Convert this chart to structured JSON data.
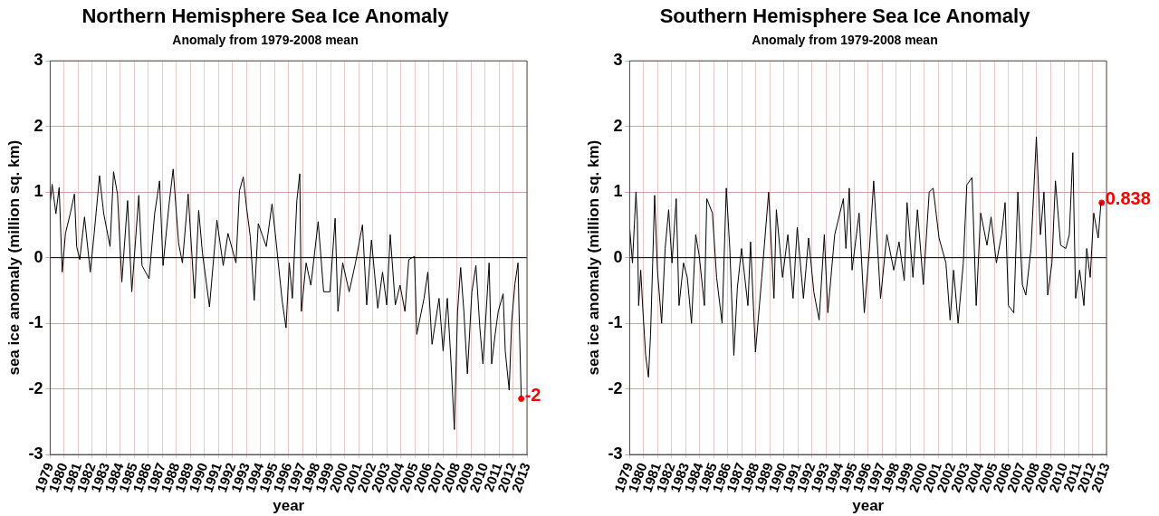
{
  "chart_data": [
    {
      "type": "line",
      "title": "Northern Hemisphere Sea Ice Anomaly",
      "subtitle": "Anomaly from 1979-2008 mean",
      "xlabel": "year",
      "ylabel": "sea ice anomaly (million sq. km)",
      "xlim": [
        1979,
        2013
      ],
      "xticks": [
        1979,
        1980,
        1981,
        1982,
        1983,
        1984,
        1985,
        1986,
        1987,
        1988,
        1989,
        1990,
        1991,
        1992,
        1993,
        1994,
        1995,
        1996,
        1997,
        1998,
        1999,
        2000,
        2001,
        2002,
        2003,
        2004,
        2005,
        2006,
        2007,
        2008,
        2009,
        2010,
        2011,
        2012,
        2013
      ],
      "ylim": [
        -3,
        3
      ],
      "yticks": [
        -3,
        -2,
        -1,
        0,
        1,
        2,
        3
      ],
      "grid": true,
      "ref_lines": [
        {
          "axis": "y",
          "value": 0,
          "color": "#000000"
        }
      ],
      "x": [
        1979.0,
        1979.14,
        1979.41,
        1979.64,
        1979.86,
        1980.09,
        1980.43,
        1980.73,
        1980.89,
        1981.11,
        1981.45,
        1981.86,
        1982.14,
        1982.52,
        1982.82,
        1983.27,
        1983.52,
        1983.8,
        1984.11,
        1984.52,
        1984.82,
        1985.32,
        1985.55,
        1986.05,
        1986.45,
        1986.8,
        1987.05,
        1987.48,
        1987.77,
        1988.16,
        1988.43,
        1988.84,
        1989.3,
        1989.59,
        1989.86,
        1990.36,
        1990.89,
        1991.34,
        1991.68,
        1992.25,
        1992.5,
        1992.77,
        1993.0,
        1993.27,
        1993.55,
        1993.84,
        1994.41,
        1994.82,
        1995.05,
        1995.55,
        1995.82,
        1996.05,
        1996.27,
        1996.59,
        1996.8,
        1996.91,
        1997.25,
        1997.59,
        1998.11,
        1998.5,
        1998.95,
        1999.32,
        1999.52,
        1999.86,
        2000.32,
        2000.77,
        2001.27,
        2001.57,
        2001.91,
        2002.36,
        2002.7,
        2003.0,
        2003.25,
        2003.61,
        2003.95,
        2004.3,
        2004.57,
        2004.98,
        2005.14,
        2005.66,
        2005.93,
        2006.23,
        2006.73,
        2007.02,
        2007.32,
        2007.59,
        2007.82,
        2008.05,
        2008.27,
        2008.5,
        2008.75,
        2009.07,
        2009.36,
        2009.64,
        2009.86,
        2010.09,
        2010.3,
        2010.48,
        2010.73,
        2010.95,
        2011.3,
        2011.45,
        2011.73,
        2011.91,
        2012.14,
        2012.36,
        2012.45,
        2012.59
      ],
      "series": [
        {
          "color": "#000000",
          "marker": "none",
          "values": [
            0.83,
            1.12,
            0.67,
            1.07,
            -0.22,
            0.37,
            0.67,
            0.97,
            0.17,
            -0.03,
            0.62,
            -0.22,
            0.37,
            1.25,
            0.67,
            0.17,
            1.31,
            0.97,
            -0.37,
            0.87,
            -0.52,
            0.95,
            -0.12,
            -0.32,
            0.67,
            1.17,
            -0.12,
            0.82,
            1.35,
            0.22,
            -0.08,
            0.97,
            -0.62,
            0.72,
            0.07,
            -0.75,
            0.57,
            -0.12,
            0.37,
            -0.08,
            1.02,
            1.23,
            0.77,
            0.32,
            -0.65,
            0.52,
            0.17,
            0.82,
            0.37,
            -0.67,
            -1.07,
            -0.08,
            -0.62,
            0.87,
            1.28,
            -0.82,
            -0.08,
            -0.42,
            0.55,
            -0.52,
            -0.52,
            0.6,
            -0.82,
            -0.08,
            -0.52,
            -0.08,
            0.5,
            -0.72,
            0.27,
            -0.77,
            -0.22,
            -0.72,
            0.35,
            -0.72,
            -0.42,
            -0.82,
            -0.03,
            0.02,
            -1.17,
            -0.62,
            -0.22,
            -1.32,
            -0.62,
            -1.42,
            -0.62,
            -1.62,
            -2.62,
            -0.82,
            -0.15,
            -0.82,
            -1.77,
            -0.52,
            -0.12,
            -1.07,
            -1.62,
            -0.82,
            -0.08,
            -1.62,
            -1.17,
            -0.82,
            -0.55,
            -1.42,
            -2.02,
            -0.97,
            -0.4,
            -0.08,
            -0.97,
            -2.12
          ]
        },
        {
          "type": "scatter",
          "color": "#ff0000",
          "marker": "circle",
          "x": [
            2012.59
          ],
          "values": [
            -2.15
          ],
          "value_labels": [
            "-2"
          ]
        }
      ]
    },
    {
      "type": "line",
      "title": "Southern Hemisphere Sea Ice Anomaly",
      "subtitle": "Anomaly from 1979-2008 mean",
      "xlabel": "year",
      "ylabel": "sea ice anomaly (million sq. km)",
      "xlim": [
        1979,
        2013
      ],
      "xticks": [
        1979,
        1980,
        1981,
        1982,
        1983,
        1984,
        1985,
        1986,
        1987,
        1988,
        1989,
        1990,
        1991,
        1992,
        1993,
        1994,
        1995,
        1996,
        1997,
        1998,
        1999,
        2000,
        2001,
        2002,
        2003,
        2004,
        2005,
        2006,
        2007,
        2008,
        2009,
        2010,
        2011,
        2012,
        2013
      ],
      "ylim": [
        -3,
        3
      ],
      "yticks": [
        -3,
        -2,
        -1,
        0,
        1,
        2,
        3
      ],
      "grid": true,
      "ref_lines": [
        {
          "axis": "y",
          "value": 0,
          "color": "#000000"
        }
      ],
      "x": [
        1979.0,
        1979.2,
        1979.45,
        1979.55,
        1979.64,
        1979.79,
        1979.94,
        1980.14,
        1980.34,
        1980.49,
        1980.64,
        1980.78,
        1980.98,
        1981.28,
        1981.53,
        1981.78,
        1982.02,
        1982.32,
        1982.52,
        1982.84,
        1983.11,
        1983.41,
        1983.71,
        1983.96,
        1984.33,
        1984.5,
        1984.9,
        1985.2,
        1985.59,
        1985.89,
        1986.14,
        1986.43,
        1986.68,
        1986.98,
        1987.43,
        1987.62,
        1987.97,
        1988.42,
        1988.91,
        1989.29,
        1989.46,
        1989.9,
        1990.28,
        1990.65,
        1990.95,
        1991.39,
        1991.76,
        1992.13,
        1992.51,
        1992.88,
        1993.13,
        1993.62,
        1994.24,
        1994.42,
        1994.66,
        1994.86,
        1995.36,
        1995.73,
        1996.1,
        1996.4,
        1996.89,
        1997.34,
        1997.83,
        1998.21,
        1998.58,
        1998.78,
        1999.2,
        1999.52,
        1999.94,
        2000.36,
        2000.64,
        2001.06,
        2001.55,
        2001.85,
        2002.1,
        2002.42,
        2002.79,
        2003.04,
        2003.41,
        2003.71,
        2004.03,
        2004.48,
        2004.77,
        2005.15,
        2005.52,
        2005.77,
        2006.01,
        2006.39,
        2006.68,
        2007.0,
        2007.25,
        2007.62,
        2008.0,
        2008.29,
        2008.54,
        2008.81,
        2009.11,
        2009.36,
        2009.73,
        2010.1,
        2010.35,
        2010.6,
        2010.8,
        2011.09,
        2011.39,
        2011.59,
        2011.84,
        2012.09,
        2012.41,
        2012.61
      ],
      "series": [
        {
          "color": "#000000",
          "marker": "none",
          "values": [
            0.46,
            -0.08,
            1.0,
            0.57,
            -0.73,
            -0.19,
            -0.79,
            -1.49,
            -1.82,
            -1.17,
            -0.08,
            0.95,
            -0.19,
            -1.0,
            0.14,
            0.73,
            -0.08,
            0.9,
            -0.73,
            -0.08,
            -0.3,
            -1.0,
            0.35,
            0.03,
            -0.73,
            0.9,
            0.68,
            -0.3,
            -1.0,
            1.06,
            0.14,
            -1.49,
            -0.46,
            0.14,
            -0.73,
            0.24,
            -1.44,
            -0.3,
            1.0,
            -0.62,
            0.73,
            -0.3,
            0.35,
            -0.62,
            0.46,
            -0.62,
            0.3,
            -0.52,
            -0.95,
            0.35,
            -0.84,
            0.35,
            0.9,
            0.14,
            1.06,
            -0.19,
            0.68,
            -0.84,
            0.14,
            1.17,
            -0.62,
            0.35,
            -0.19,
            0.24,
            -0.35,
            0.84,
            -0.3,
            0.73,
            -0.41,
            1.0,
            1.06,
            0.3,
            -0.08,
            -0.95,
            -0.19,
            -1.0,
            -0.08,
            1.11,
            1.22,
            -0.73,
            0.68,
            0.19,
            0.62,
            -0.08,
            0.35,
            0.84,
            -0.73,
            -0.84,
            1.0,
            -0.41,
            -0.57,
            0.14,
            1.84,
            0.35,
            1.0,
            -0.57,
            -0.08,
            1.17,
            0.19,
            0.14,
            0.35,
            1.6,
            -0.62,
            -0.19,
            -0.73,
            0.14,
            -0.3,
            0.68,
            0.3,
            0.84
          ]
        },
        {
          "type": "scatter",
          "color": "#ff0000",
          "marker": "circle",
          "x": [
            2012.66
          ],
          "values": [
            0.838
          ],
          "value_labels": [
            "0.838"
          ]
        }
      ]
    }
  ]
}
